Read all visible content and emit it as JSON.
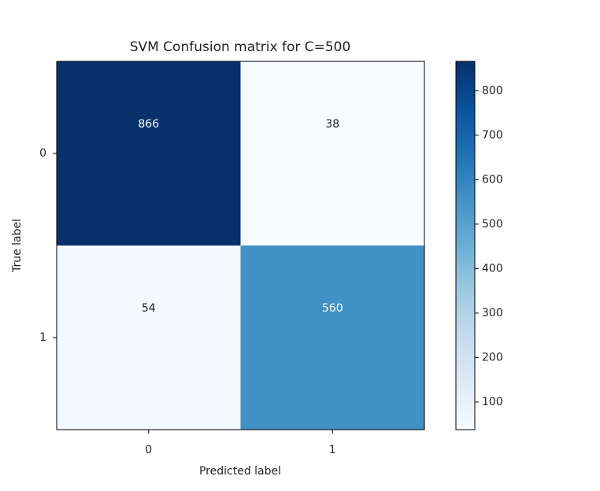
{
  "chart_data": {
    "type": "heatmap",
    "title": "SVM Confusion matrix for C=500",
    "x_label": "Predicted label",
    "y_label": "True label",
    "x_categories": [
      "0",
      "1"
    ],
    "y_categories": [
      "0",
      "1"
    ],
    "values": [
      [
        866,
        38
      ],
      [
        54,
        560
      ]
    ],
    "colormap": "Blues",
    "colorbar_lim": [
      38,
      866
    ],
    "colorbar_ticks": [
      100,
      200,
      300,
      400,
      500,
      600,
      700,
      800
    ]
  }
}
